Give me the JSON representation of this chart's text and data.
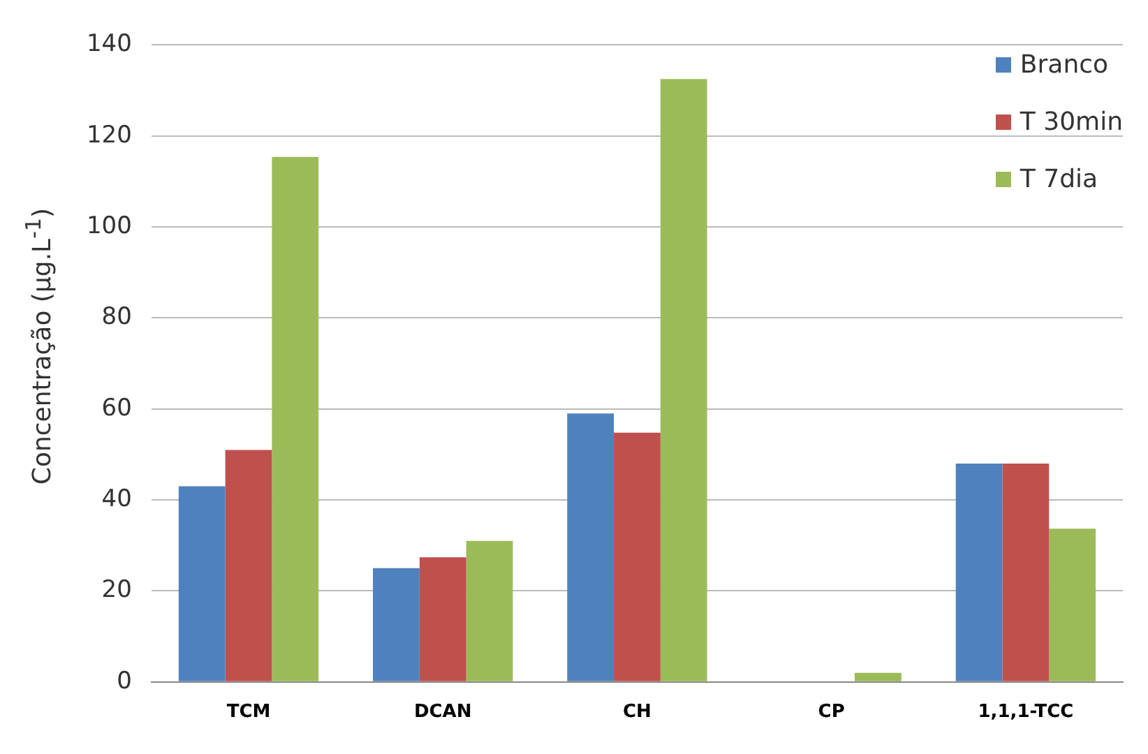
{
  "chart_data": {
    "type": "bar",
    "ylabel": "Concentração (µg.L$^{-1}$)",
    "categories": [
      "TCM",
      "DCAN",
      "CH",
      "CP",
      "1,1,1-TCC"
    ],
    "series": [
      {
        "name": "Branco",
        "color": "#4f81bd",
        "values": [
          43,
          25,
          59,
          0,
          48
        ]
      },
      {
        "name": "T 30min",
        "color": "#c0504d",
        "values": [
          51,
          27.4,
          54.8,
          0,
          48
        ]
      },
      {
        "name": "T 7dia",
        "color": "#9bbb59",
        "values": [
          115.4,
          31,
          132.5,
          2,
          33.7
        ]
      }
    ],
    "ylim": [
      0,
      140
    ],
    "yticks": [
      0,
      20,
      40,
      60,
      80,
      100,
      120,
      140
    ],
    "grid": "y",
    "legend": "top right"
  }
}
